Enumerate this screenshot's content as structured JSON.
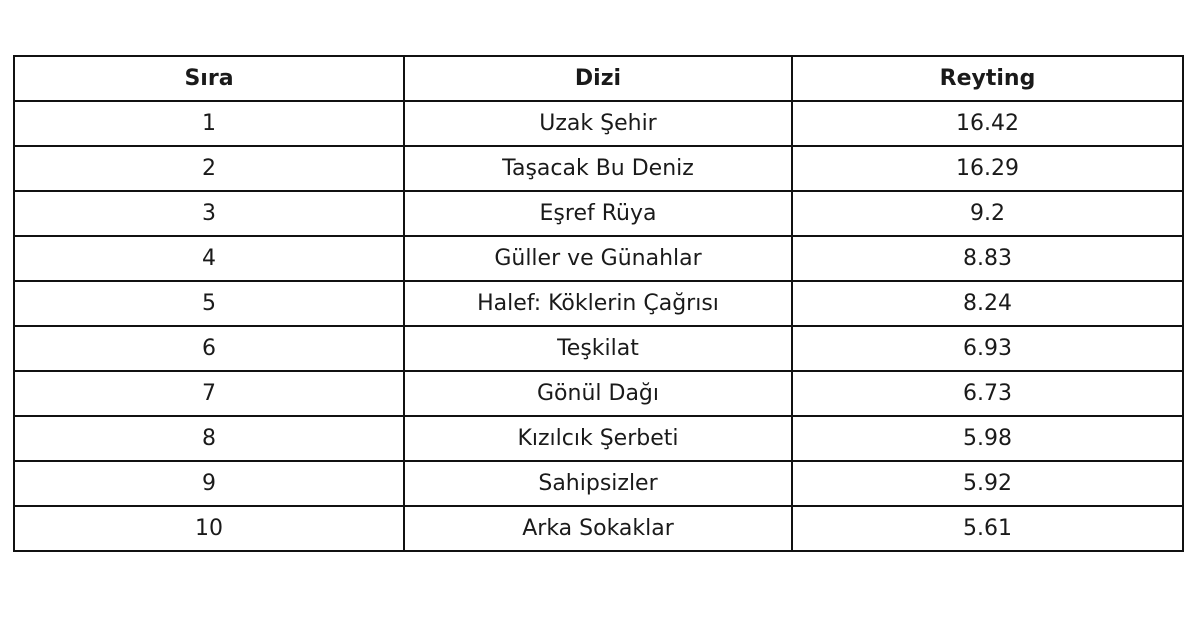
{
  "chart_data": {
    "type": "table",
    "columns": [
      "Sıra",
      "Dizi",
      "Reyting"
    ],
    "rows": [
      [
        "1",
        "Uzak Şehir",
        "16.42"
      ],
      [
        "2",
        "Taşacak Bu Deniz",
        "16.29"
      ],
      [
        "3",
        "Eşref Rüya",
        "9.2"
      ],
      [
        "4",
        "Güller ve Günahlar",
        "8.83"
      ],
      [
        "5",
        "Halef: Köklerin Çağrısı",
        "8.24"
      ],
      [
        "6",
        "Teşkilat",
        "6.93"
      ],
      [
        "7",
        "Gönül Dağı",
        "6.73"
      ],
      [
        "8",
        "Kızılcık Şerbeti",
        "5.98"
      ],
      [
        "9",
        "Sahipsizler",
        "5.92"
      ],
      [
        "10",
        "Arka Sokaklar",
        "5.61"
      ]
    ]
  }
}
